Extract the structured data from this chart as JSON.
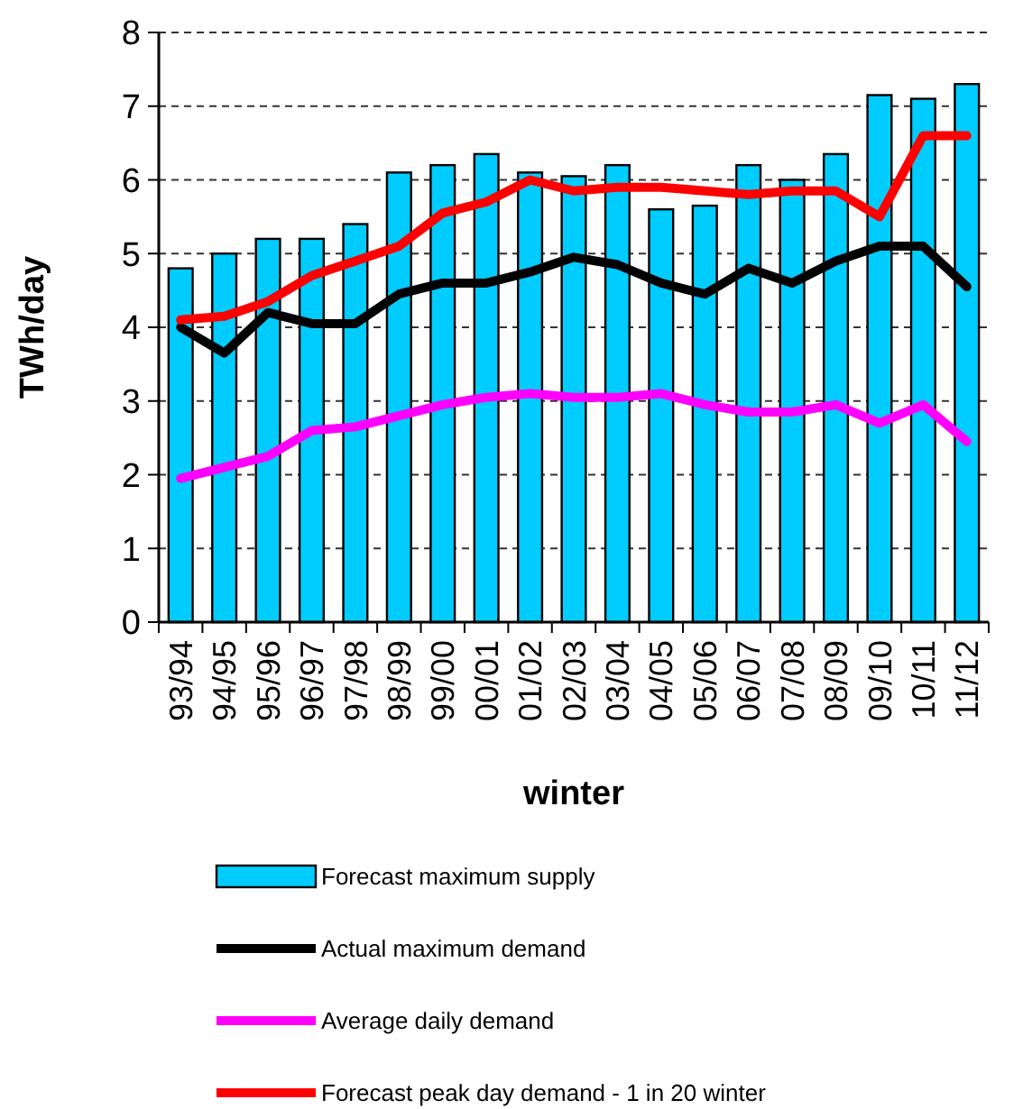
{
  "chart_data": {
    "type": "bar",
    "xlabel": "winter",
    "ylabel": "TWh/day",
    "categories": [
      "93/94",
      "94/95",
      "95/96",
      "96/97",
      "97/98",
      "98/99",
      "99/00",
      "00/01",
      "01/02",
      "02/03",
      "03/04",
      "04/05",
      "05/06",
      "06/07",
      "07/08",
      "08/09",
      "09/10",
      "10/11",
      "11/12"
    ],
    "series": [
      {
        "name": "Forecast maximum supply",
        "color": "#00ccff",
        "values": [
          4.8,
          5.0,
          5.2,
          5.2,
          5.4,
          6.1,
          6.2,
          6.35,
          6.1,
          6.05,
          6.2,
          5.6,
          5.65,
          6.2,
          6.0,
          6.35,
          7.15,
          7.1,
          7.3
        ]
      },
      {
        "name": "Actual maximum demand",
        "type": "line",
        "color": "#000000",
        "values": [
          4.0,
          3.65,
          4.2,
          4.05,
          4.05,
          4.45,
          4.6,
          4.6,
          4.75,
          4.95,
          4.85,
          4.6,
          4.45,
          4.8,
          4.6,
          4.9,
          5.1,
          5.1,
          4.55
        ]
      },
      {
        "name": "Average daily demand",
        "type": "line",
        "color": "#ff00ff",
        "values": [
          1.95,
          2.1,
          2.25,
          2.6,
          2.65,
          2.8,
          2.95,
          3.05,
          3.1,
          3.05,
          3.05,
          3.1,
          2.95,
          2.85,
          2.85,
          2.95,
          2.7,
          2.95,
          2.45
        ]
      },
      {
        "name": "Forecast peak day demand - 1 in 20 winter",
        "type": "line",
        "color": "#ff0000",
        "values": [
          4.1,
          4.15,
          4.35,
          4.7,
          4.9,
          5.1,
          5.55,
          5.7,
          6.0,
          5.85,
          5.9,
          5.9,
          5.85,
          5.8,
          5.85,
          5.85,
          5.5,
          6.6,
          6.6
        ]
      }
    ],
    "ylim": [
      0,
      8
    ],
    "yticks": [
      0,
      1,
      2,
      3,
      4,
      5,
      6,
      7,
      8
    ],
    "grid": "y",
    "legend": "bottom",
    "line_style": "solid",
    "marker": "none"
  }
}
